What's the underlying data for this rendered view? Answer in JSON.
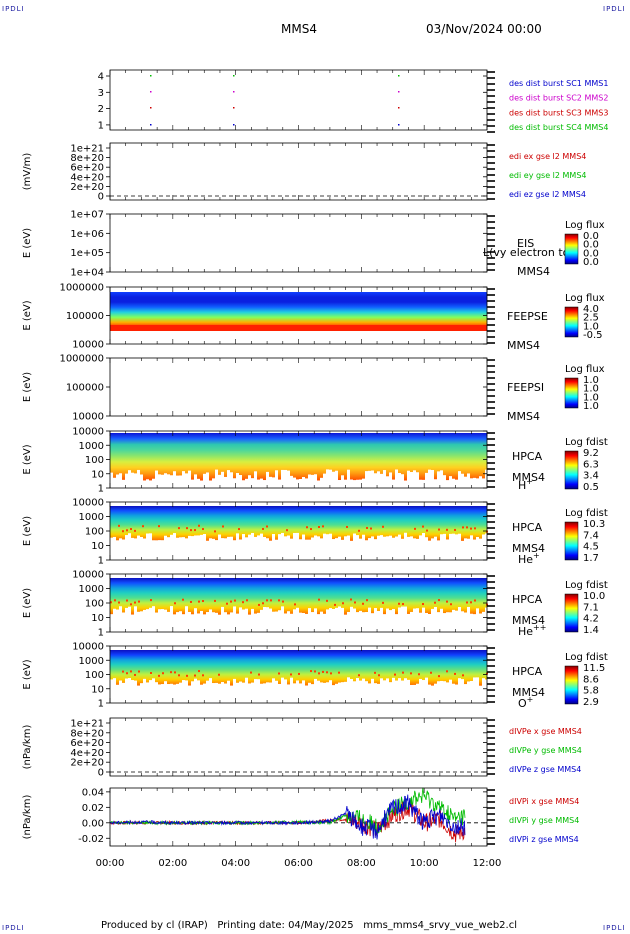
{
  "corner_mark": "IPDLI",
  "header": {
    "spacecraft": "MMS4",
    "date": "03/Nov/2024 00:00"
  },
  "footer": {
    "text": "Produced by cl (IRAP)   Printing date: 04/May/2025   mms_mms4_srvy_vue_web2.cl"
  },
  "chart_data": [
    {
      "type": "scatter",
      "panel": "burst",
      "yticks": [
        "4",
        "3",
        "2",
        "1"
      ],
      "legend": [
        {
          "name": "des dist burst SC1 MMS1",
          "color": "#0000cc"
        },
        {
          "name": "des dist burst SC2 MMS2",
          "color": "#cc00cc"
        },
        {
          "name": "des dist burst SC3 MMS3",
          "color": "#cc0000"
        },
        {
          "name": "des dist burst SC4 MMS4",
          "color": "#00bb00"
        }
      ]
    },
    {
      "type": "line",
      "panel": "edi",
      "ylabel": "(mV/m)",
      "yticks": [
        "1e+21",
        "8e+20",
        "6e+20",
        "4e+20",
        "2e+20",
        "0"
      ],
      "legend": [
        {
          "name": "edi ex gse l2 MMS4",
          "color": "#cc0000"
        },
        {
          "name": "edi ey gse l2 MMS4",
          "color": "#00bb00"
        },
        {
          "name": "edi ez gse l2 MMS4",
          "color": "#0000cc"
        }
      ]
    },
    {
      "type": "heatmap",
      "panel": "eis",
      "ylabel": "E (eV)",
      "yticks": [
        "1e+07",
        "1e+06",
        "1e+05",
        "1e+04"
      ],
      "labels": [
        "EIS",
        "MMS4"
      ],
      "overlay": "L(vy electron to",
      "cbar_title": "Log flux",
      "cbar_ticks": [
        "0.0",
        "0.0",
        "0.0",
        "0.0"
      ]
    },
    {
      "type": "heatmap",
      "panel": "feepse",
      "ylabel": "E (eV)",
      "yticks": [
        "1000000",
        "100000",
        "10000"
      ],
      "labels": [
        "FEEPSE",
        "MMS4"
      ],
      "cbar_title": "Log flux",
      "cbar_ticks": [
        "4.0",
        "2.5",
        "1.0",
        "-0.5"
      ]
    },
    {
      "type": "heatmap",
      "panel": "feepsi",
      "ylabel": "E (eV)",
      "yticks": [
        "1000000",
        "100000",
        "10000"
      ],
      "labels": [
        "FEEPSI",
        "MMS4"
      ],
      "cbar_title": "Log flux",
      "cbar_ticks": [
        "1.0",
        "1.0",
        "1.0",
        "1.0"
      ]
    },
    {
      "type": "heatmap",
      "panel": "hpca_h",
      "ylabel": "E (eV)",
      "yticks": [
        "10000",
        "1000",
        "100",
        "10",
        "1"
      ],
      "labels": [
        "HPCA",
        "MMS4"
      ],
      "species": "H",
      "charge": "+",
      "cbar_title": "Log fdist",
      "cbar_ticks": [
        "9.2",
        "6.3",
        "3.4",
        "0.5"
      ]
    },
    {
      "type": "heatmap",
      "panel": "hpca_he",
      "ylabel": "E (eV)",
      "yticks": [
        "10000",
        "1000",
        "100",
        "10",
        "1"
      ],
      "labels": [
        "HPCA",
        "MMS4"
      ],
      "species": "He",
      "charge": "+",
      "cbar_title": "Log fdist",
      "cbar_ticks": [
        "10.3",
        "7.4",
        "4.5",
        "1.7"
      ]
    },
    {
      "type": "heatmap",
      "panel": "hpca_hepp",
      "ylabel": "E (eV)",
      "yticks": [
        "10000",
        "1000",
        "100",
        "10",
        "1"
      ],
      "labels": [
        "HPCA",
        "MMS4"
      ],
      "species": "He",
      "charge": "++",
      "cbar_title": "Log fdist",
      "cbar_ticks": [
        "10.0",
        "7.1",
        "4.2",
        "1.4"
      ]
    },
    {
      "type": "heatmap",
      "panel": "hpca_o",
      "ylabel": "E (eV)",
      "yticks": [
        "10000",
        "1000",
        "100",
        "10",
        "1"
      ],
      "labels": [
        "HPCA",
        "MMS4"
      ],
      "species": "O",
      "charge": "+",
      "cbar_title": "Log fdist",
      "cbar_ticks": [
        "11.5",
        "8.6",
        "5.8",
        "2.9"
      ]
    },
    {
      "type": "line",
      "panel": "divpe",
      "ylabel": "(nPa/km)",
      "yticks": [
        "1e+21",
        "8e+20",
        "6e+20",
        "4e+20",
        "2e+20",
        "0"
      ],
      "legend": [
        {
          "name": "dIVPe x gse MMS4",
          "color": "#cc0000"
        },
        {
          "name": "dIVPe y gse MMS4",
          "color": "#00bb00"
        },
        {
          "name": "dIVPe z gse MMS4",
          "color": "#0000cc"
        }
      ]
    },
    {
      "type": "line",
      "panel": "divpi",
      "ylabel": "(nPa/km)",
      "yticks": [
        "0.04",
        "0.02",
        "0.00",
        "-0.02"
      ],
      "ylim": [
        -0.03,
        0.045
      ],
      "legend": [
        {
          "name": "dIVPi x gse MMS4",
          "color": "#cc0000"
        },
        {
          "name": "dIVPi y gse MMS4",
          "color": "#00bb00"
        },
        {
          "name": "dIVPi z gse MMS4",
          "color": "#0000cc"
        }
      ],
      "x_hours": [
        0,
        1,
        2,
        3,
        4,
        5,
        6,
        7,
        7.5,
        8,
        8.5,
        9,
        9.5,
        10,
        10.5,
        11,
        11.3
      ],
      "series": [
        {
          "values": [
            0.0,
            0.0,
            0.0,
            0.0,
            0.0,
            0.0,
            0.0,
            0.003,
            0.005,
            0.0,
            -0.01,
            0.01,
            0.02,
            0.0,
            0.005,
            -0.015,
            -0.01
          ]
        },
        {
          "values": [
            0.0,
            0.0,
            0.0,
            0.0,
            0.0,
            0.0,
            0.001,
            0.0,
            0.01,
            0.005,
            -0.005,
            0.015,
            0.03,
            0.035,
            0.02,
            0.005,
            0.01
          ]
        },
        {
          "values": [
            0.0,
            0.001,
            0.0,
            0.0,
            0.0,
            0.0,
            0.0,
            0.002,
            0.012,
            -0.005,
            -0.01,
            0.02,
            0.025,
            0.0,
            0.01,
            -0.005,
            -0.005
          ]
        }
      ]
    }
  ],
  "xaxis": {
    "ticks": [
      "00:00",
      "02:00",
      "04:00",
      "06:00",
      "08:00",
      "10:00",
      "12:00"
    ]
  }
}
